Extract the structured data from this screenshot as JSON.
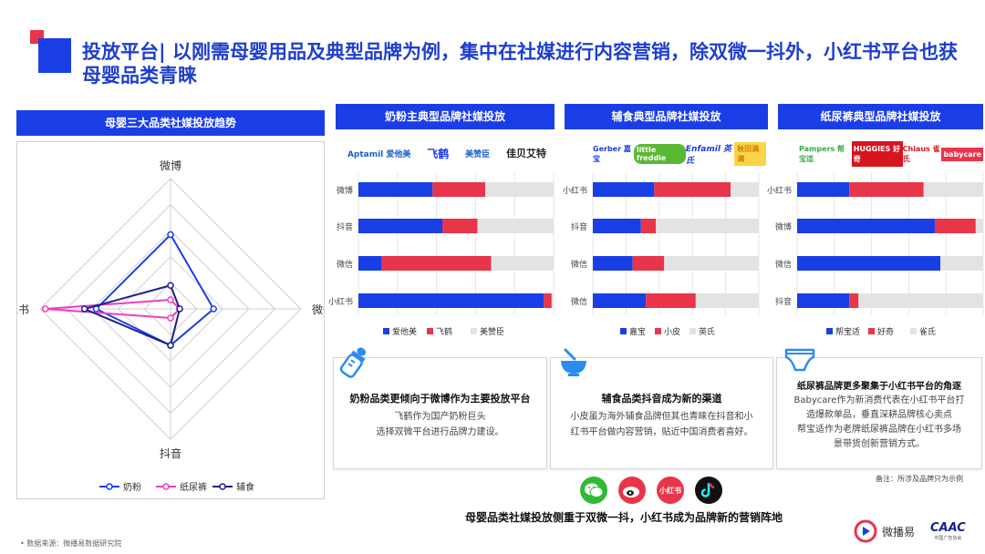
{
  "page": {
    "title": "投放平台| 以刚需母婴用品及典型品牌为例，集中在社媒进行内容营销，除双微一抖外，小红书平台也获母婴品类青睐",
    "bottom_summary": "母婴品类社媒投放侧重于双微一抖，小红书成为品牌新的营销阵地",
    "source": "数据来源：微播易数据研究院",
    "note": "备注：所涉及品牌只为示例",
    "logo_weiboyi": "微播易",
    "logo_caac": "CAAC",
    "logo_caac_sub": "中国广告协会"
  },
  "colors": {
    "blue": "#1a3ee6",
    "red": "#e8354a",
    "gray": "#e3e3e3",
    "pink": "#ee3fbf",
    "navy": "#1c1f8c"
  },
  "radar": {
    "header": "母婴三大品类社媒投放趋势",
    "axes": [
      "微博",
      "微信",
      "抖音",
      "小红书"
    ],
    "legend": [
      "奶粉",
      "纸尿裤",
      "辅食"
    ]
  },
  "panels": [
    {
      "header": "奶粉主典型品牌社媒投放",
      "brands": [
        "Aptamil 爱他美",
        "飞鹤",
        "美赞臣",
        "佳贝艾特"
      ],
      "legend": [
        "爱他美",
        "飞鹤",
        "美赞臣"
      ],
      "box_title": "奶粉品类更倾向于微博作为主要投放平台",
      "box_body": [
        "飞鹤作为国产奶粉巨头",
        "选择双微平台进行品牌力建设。"
      ]
    },
    {
      "header": "辅食典型品牌社媒投放",
      "brands": [
        "Gerber 嘉宝",
        "little freddie",
        "Enfamil 英氏",
        "秋田满满"
      ],
      "legend": [
        "嘉宝",
        "小皮",
        "英氏"
      ],
      "box_title": "辅食品类抖音成为新的渠道",
      "box_body": [
        "小皮虽为海外辅食品牌但其也青睐在抖音和小",
        "红书平台做内容营销，贴近中国消费者喜好。"
      ]
    },
    {
      "header": "纸尿裤典型品牌社媒投放",
      "brands": [
        "Pampers 帮宝适",
        "HUGGIES 好奇",
        "Chiaus 雀氏",
        "babycare"
      ],
      "legend": [
        "帮宝适",
        "好奇",
        "雀氏"
      ],
      "box_title": "纸尿裤品牌更多聚集于小红书平台的角逐",
      "box_body": [
        "Babycare作为新消费代表在小红书平台打",
        "造爆款单品，垂直深耕品牌核心卖点",
        "帮宝适作为老牌纸尿裤品牌在小红书多场",
        "景带货创新营销方式。"
      ]
    }
  ],
  "social_icons": [
    "微信",
    "微博",
    "小红书",
    "抖音"
  ],
  "chart_data": [
    {
      "type": "radar",
      "title": "母婴三大品类社媒投放趋势",
      "axes": [
        "微博",
        "微信",
        "抖音",
        "小红书"
      ],
      "rmax": 1,
      "series": [
        {
          "name": "奶粉",
          "values": [
            0.57,
            0.33,
            0.28,
            0.57
          ]
        },
        {
          "name": "纸尿裤",
          "values": [
            0.07,
            0.07,
            0.07,
            0.96
          ]
        },
        {
          "name": "辅食",
          "values": [
            0.18,
            0.07,
            0.28,
            0.66
          ]
        }
      ]
    },
    {
      "type": "bar",
      "stacked": true,
      "orientation": "horizontal",
      "title": "奶粉主典型品牌社媒投放",
      "categories": [
        "微博",
        "抖音",
        "微信",
        "小红书"
      ],
      "series": [
        {
          "name": "爱他美",
          "values": [
            38,
            43,
            12,
            95
          ]
        },
        {
          "name": "飞鹤",
          "values": [
            27,
            18,
            56,
            4
          ]
        },
        {
          "name": "美赞臣",
          "values": [
            35,
            39,
            32,
            1
          ]
        }
      ]
    },
    {
      "type": "bar",
      "stacked": true,
      "orientation": "horizontal",
      "title": "辅食典型品牌社媒投放",
      "categories": [
        "小红书",
        "抖音",
        "微信",
        "微信"
      ],
      "series": [
        {
          "name": "嘉宝",
          "values": [
            37,
            29,
            24,
            32
          ]
        },
        {
          "name": "小皮",
          "values": [
            46,
            9,
            19,
            30
          ]
        },
        {
          "name": "英氏",
          "values": [
            17,
            62,
            57,
            38
          ]
        }
      ]
    },
    {
      "type": "bar",
      "stacked": true,
      "orientation": "horizontal",
      "title": "纸尿裤典型品牌社媒投放",
      "categories": [
        "小红书",
        "微博",
        "微信",
        "抖音"
      ],
      "series": [
        {
          "name": "帮宝适",
          "values": [
            28,
            74,
            77,
            28
          ]
        },
        {
          "name": "好奇",
          "values": [
            40,
            22,
            0,
            5
          ]
        },
        {
          "name": "雀氏",
          "values": [
            32,
            4,
            23,
            67
          ]
        }
      ]
    }
  ]
}
